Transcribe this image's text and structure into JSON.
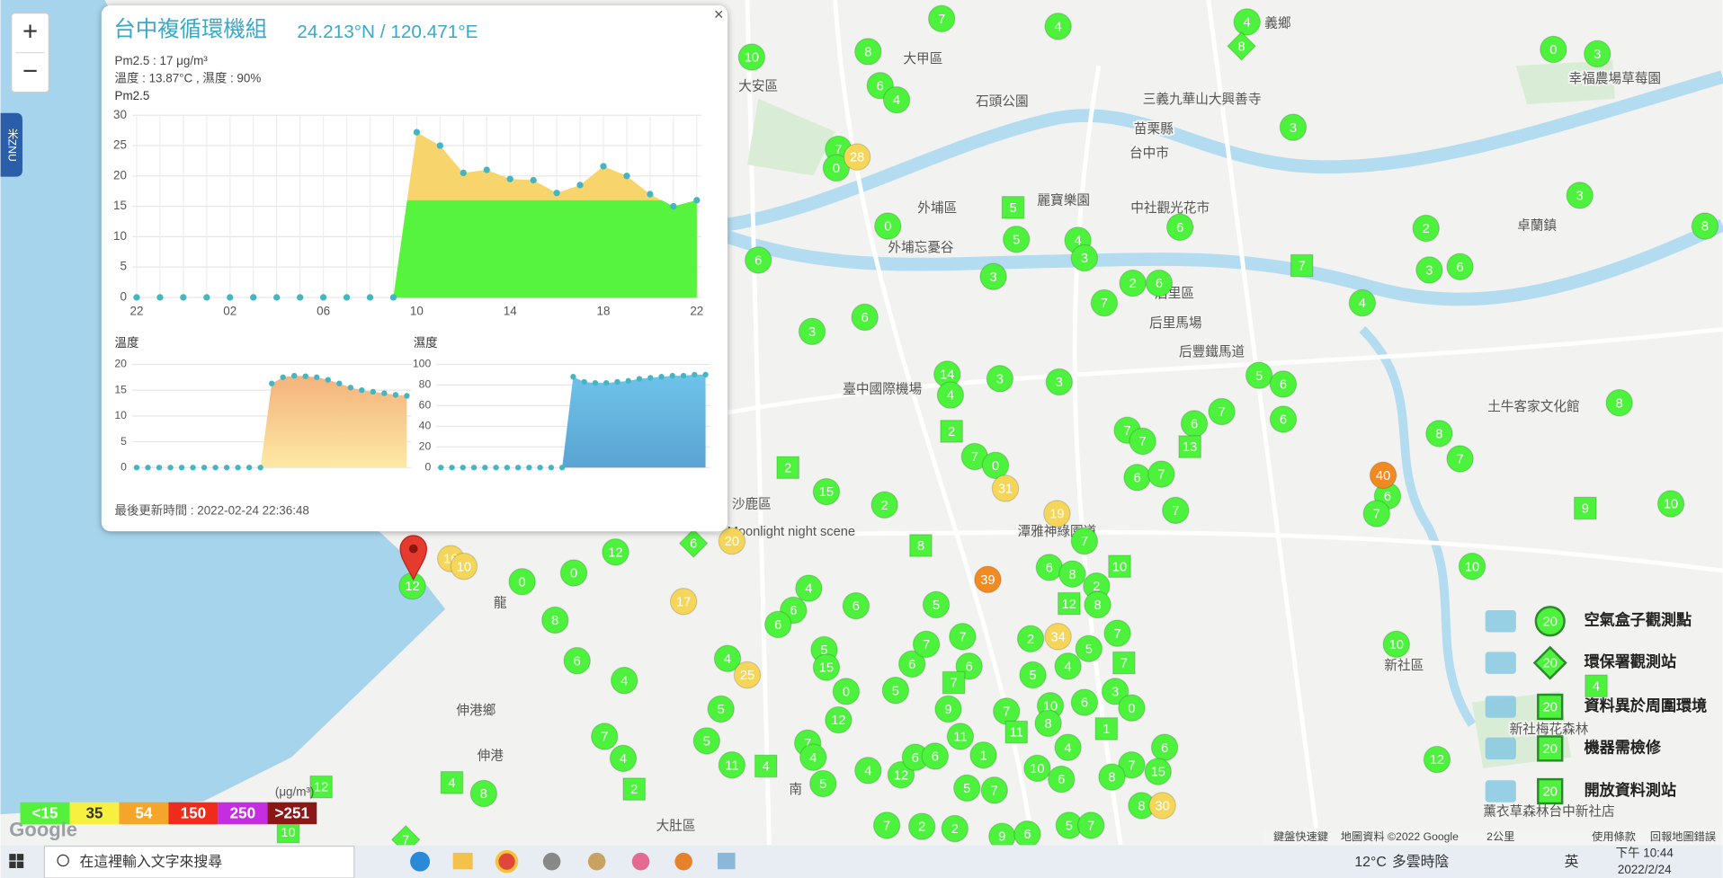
{
  "popup": {
    "close": "×",
    "title": "台中複循環機組",
    "coords": "24.213°N / 120.471°E",
    "lines": [
      "Pm2.5 : 17 μg/m³",
      "溫度 : 13.87°C , 濕度 : 90%"
    ],
    "updated": "最後更新時間 : 2022-02-24 22:36:48"
  },
  "chart_data": [
    {
      "type": "area",
      "title": "Pm2.5",
      "categories": [
        "22",
        null,
        null,
        null,
        "02",
        null,
        null,
        null,
        "06",
        null,
        null,
        null,
        "10",
        null,
        null,
        null,
        "14",
        null,
        null,
        null,
        "18",
        null,
        null,
        null,
        "22"
      ],
      "values": [
        0,
        0,
        0,
        0,
        0,
        0,
        0,
        0,
        0,
        0,
        0,
        0,
        27.2,
        25,
        20.5,
        21,
        19.5,
        19.3,
        17.2,
        18.5,
        21.6,
        20,
        17,
        15,
        16
      ],
      "ylim": [
        0,
        30
      ],
      "yticks": [
        0,
        5,
        10,
        15,
        20,
        25,
        30
      ],
      "grid": true,
      "threshold": 16,
      "color_below": "#56f33f",
      "color_above": "#f7d56c",
      "dot_color": "#46b5c2"
    },
    {
      "type": "area",
      "title": "溫度",
      "values": [
        0,
        0,
        0,
        0,
        0,
        0,
        0,
        0,
        0,
        0,
        0,
        0,
        16.3,
        17.5,
        17.8,
        17.7,
        17.5,
        17,
        16.3,
        15.5,
        15,
        14.7,
        14.4,
        14.1,
        13.9
      ],
      "ylim": [
        0,
        20
      ],
      "yticks": [
        0,
        5,
        10,
        15,
        20
      ],
      "grid": true,
      "color_top": "#f3b27c",
      "color_bottom": "#fde9a4",
      "dot_color": "#46b5c2"
    },
    {
      "type": "area",
      "title": "濕度",
      "values": [
        0,
        0,
        0,
        0,
        0,
        0,
        0,
        0,
        0,
        0,
        0,
        0,
        88,
        83,
        82,
        82,
        83,
        84,
        86,
        87,
        88,
        89,
        89,
        90,
        90
      ],
      "ylim": [
        0,
        100
      ],
      "yticks": [
        0,
        20,
        40,
        60,
        80,
        100
      ],
      "grid": true,
      "color_top": "#6ec3ea",
      "color_bottom": "#5aa3d2",
      "dot_color": "#46b5c2"
    }
  ],
  "map": {
    "places": [
      "大甲區",
      "大安區",
      "外埔區",
      "后里區",
      "后里馬場",
      "后豐鐵馬道",
      "卓蘭鎮",
      "台中市",
      "苗栗縣",
      "麗寶樂園",
      "石頭公園",
      "臺中國際機場",
      "沙鹿區",
      "伸港鄉",
      "伸港",
      "大肚區",
      "新社區",
      "義鄉",
      "外埔忘憂谷",
      "中社觀光花市",
      "三義九華山大興善寺",
      "幸福農場草莓園",
      "土牛客家文化館",
      "潭雅神綠園道",
      "Moonlight night scene",
      "新社梅花森林",
      "薰衣草森林台中新社店",
      "南",
      "龍"
    ],
    "markers": [
      {
        "shape": "circle",
        "color": "#4cf23c",
        "values": [
          7,
          4,
          4,
          10,
          8,
          6,
          4,
          0,
          3,
          7,
          0,
          3,
          0,
          6,
          5,
          4,
          3,
          6,
          3,
          2,
          8,
          3,
          7,
          2,
          6,
          3,
          6,
          4,
          6,
          3,
          14,
          4,
          3,
          3,
          5,
          6,
          7,
          6,
          8,
          7,
          7,
          6,
          6,
          7,
          8,
          7,
          6,
          7,
          10,
          7,
          0,
          2,
          15,
          7,
          7,
          12,
          0,
          0,
          8,
          6,
          4,
          6,
          4,
          6,
          6,
          5,
          6,
          8,
          2,
          8,
          7,
          10,
          10,
          12,
          4,
          5,
          15,
          0,
          5,
          6,
          7,
          7,
          6,
          2,
          5,
          4,
          5,
          3,
          0,
          6,
          10,
          9,
          7,
          8,
          12,
          5,
          5,
          7,
          4,
          11,
          7,
          5,
          4,
          4,
          12,
          6,
          6,
          11,
          1,
          7,
          5,
          10,
          4,
          6,
          7,
          6,
          8,
          7,
          2,
          2,
          9,
          6,
          5,
          7,
          8,
          8,
          12,
          15
        ]
      },
      {
        "shape": "square",
        "color": "#4cf23c",
        "values": [
          5,
          7,
          2,
          8,
          13,
          2,
          10,
          12,
          7,
          7,
          1,
          11,
          4,
          2,
          4,
          12,
          9,
          10,
          4
        ]
      },
      {
        "shape": "diamond",
        "color": "#4cf23c",
        "values": [
          8,
          6,
          7
        ]
      },
      {
        "shape": "circle",
        "color": "#f6d65a",
        "values": [
          28,
          31,
          19,
          20,
          17,
          25,
          34,
          30,
          16,
          10
        ]
      },
      {
        "shape": "circle",
        "color": "#f28a22",
        "values": [
          40,
          39
        ]
      }
    ]
  },
  "legend": {
    "items": [
      {
        "label": "空氣盒子觀測點",
        "icon": "20"
      },
      {
        "label": "環保署觀測站",
        "icon": "20"
      },
      {
        "label": "資料異於周圍環境",
        "icon": "20"
      },
      {
        "label": "機器需檢修",
        "icon": "20"
      },
      {
        "label": "開放資料測站",
        "icon": "20"
      }
    ]
  },
  "scale": {
    "unit": "(μg/m³)",
    "bins": [
      {
        "label": "<15",
        "color": "#55f03c"
      },
      {
        "label": "35",
        "color": "#f7f040"
      },
      {
        "label": "54",
        "color": "#f5a52a"
      },
      {
        "label": "150",
        "color": "#ef2b1b"
      },
      {
        "label": "250",
        "color": "#c52ee0"
      },
      {
        "label": ">251",
        "color": "#8c1717"
      }
    ]
  },
  "zoom": [
    "+",
    "−"
  ],
  "side_tab": "米ZNU",
  "google": "Google",
  "map_footer": [
    "鍵盤快速鍵",
    "地圖資料 ©2022 Google",
    "2公里",
    "使用條款",
    "回報地圖錯誤"
  ],
  "taskbar": {
    "search": "在這裡輸入文字來搜尋",
    "temp": "12°C",
    "weather": "多雲時陰",
    "ime": "英",
    "time": "下午 10:44",
    "date": "2022/2/24"
  }
}
